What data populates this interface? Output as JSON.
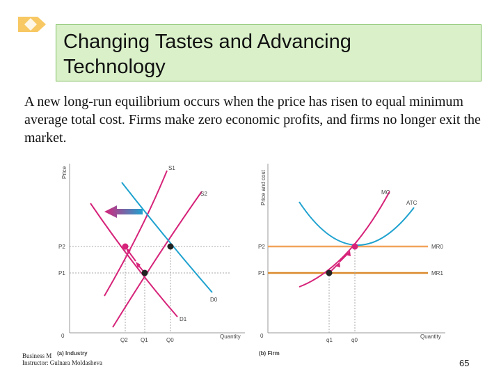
{
  "title": "Changing Tastes and Advancing\nTechnology",
  "body_text": "A new long-run equilibrium occurs when the price has risen to equal minimum average total cost. Firms make zero economic profits, and firms no longer exit the market.",
  "colors": {
    "supply": "#d6247a",
    "demand": "#1fa2cf",
    "mr": "#f3a35a",
    "title_bg": "#d9f0c9",
    "title_border": "#7fbf5f",
    "diamond": "#f7c863"
  },
  "chart_data": [
    {
      "type": "line",
      "panel_label": "(a) Industry",
      "xlabel": "Quantity",
      "ylabel": "Price",
      "origin_label": "0",
      "x_ticks": [
        "Q2",
        "Q1",
        "Q0"
      ],
      "y_ticks": [
        "P2",
        "P1"
      ],
      "series": [
        {
          "name": "S1",
          "kind": "supply"
        },
        {
          "name": "S2",
          "kind": "supply"
        },
        {
          "name": "D0",
          "kind": "demand"
        },
        {
          "name": "D1",
          "kind": "demand"
        }
      ],
      "annotations": [
        "arrow: demand shifts left",
        "arrows: movement along D1 from (Q1,P1) to (Q2,P2)"
      ]
    },
    {
      "type": "line",
      "panel_label": "(b) Firm",
      "xlabel": "Quantity",
      "ylabel": "Price and cost",
      "origin_label": "0",
      "x_ticks": [
        "q1",
        "q0"
      ],
      "y_ticks": [
        "P2",
        "P1"
      ],
      "series": [
        {
          "name": "MC",
          "kind": "cost"
        },
        {
          "name": "ATC",
          "kind": "cost"
        },
        {
          "name": "MR0",
          "kind": "revenue"
        },
        {
          "name": "MR1",
          "kind": "revenue"
        }
      ]
    }
  ],
  "footer": {
    "line1": "Business M",
    "line2": "Instructor: Gulnara Moldasheva"
  },
  "page_number": "65"
}
